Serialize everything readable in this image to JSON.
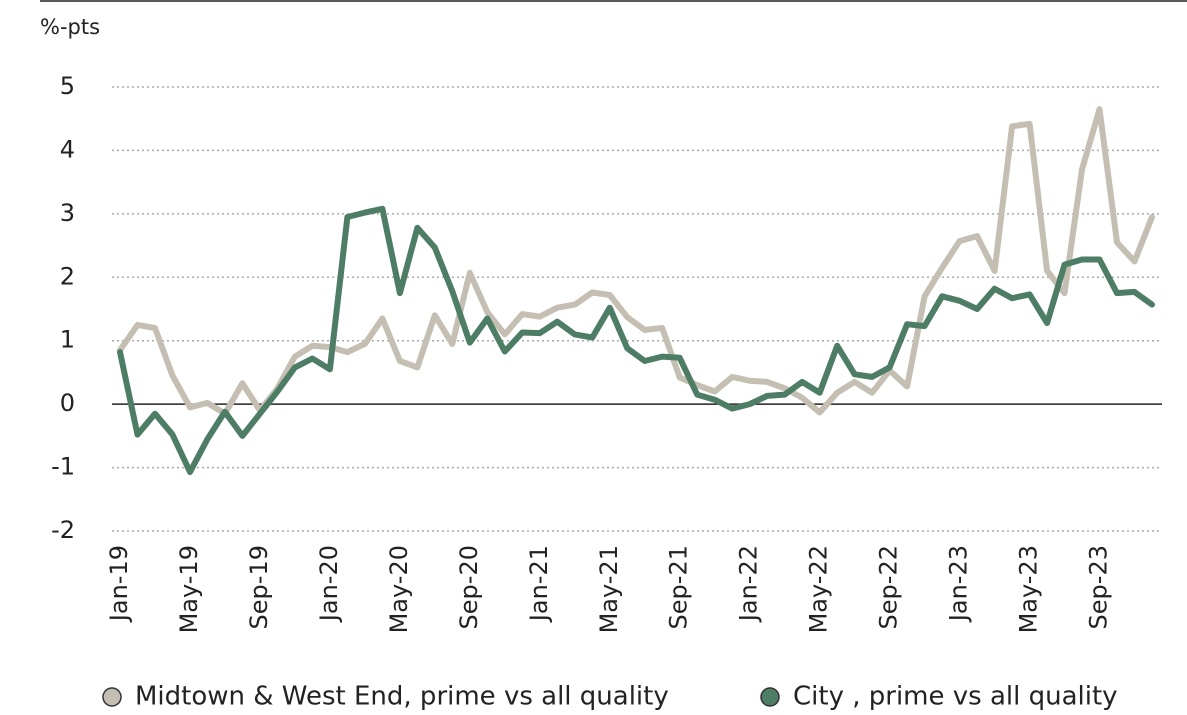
{
  "chart_data": {
    "type": "line",
    "y_axis_label": "%-pts",
    "categories": [
      "Jan-19",
      null,
      null,
      null,
      "May-19",
      null,
      null,
      null,
      "Sep-19",
      null,
      null,
      null,
      "Jan-20",
      null,
      null,
      null,
      "May-20",
      null,
      null,
      null,
      "Sep-20",
      null,
      null,
      null,
      "Jan-21",
      null,
      null,
      null,
      "May-21",
      null,
      null,
      null,
      "Sep-21",
      null,
      null,
      null,
      "Jan-22",
      null,
      null,
      null,
      "May-22",
      null,
      null,
      null,
      "Sep-22",
      null,
      null,
      null,
      "Jan-23",
      null,
      null,
      null,
      "May-23",
      null,
      null,
      null,
      "Sep-23",
      null,
      null,
      null
    ],
    "series": [
      {
        "name": "Midtown & West End, prime vs all quality",
        "color": "#c4bfb2",
        "values": [
          0.85,
          1.25,
          1.2,
          0.45,
          -0.05,
          0.02,
          -0.15,
          0.33,
          -0.1,
          0.25,
          0.75,
          0.92,
          0.9,
          0.82,
          0.95,
          1.35,
          0.68,
          0.58,
          1.4,
          0.95,
          2.07,
          1.45,
          1.1,
          1.42,
          1.38,
          1.52,
          1.57,
          1.76,
          1.72,
          1.37,
          1.17,
          1.2,
          0.42,
          0.3,
          0.2,
          0.43,
          0.37,
          0.35,
          0.25,
          0.1,
          -0.13,
          0.18,
          0.35,
          0.18,
          0.53,
          0.28,
          1.7,
          2.15,
          2.57,
          2.65,
          2.1,
          4.38,
          4.42,
          2.1,
          1.75,
          3.7,
          4.65,
          2.55,
          2.25,
          2.95
        ]
      },
      {
        "name": "City , prime vs all quality",
        "color": "#4e7d66",
        "values": [
          0.82,
          -0.48,
          -0.15,
          -0.48,
          -1.07,
          -0.55,
          -0.12,
          -0.5,
          -0.15,
          0.2,
          0.58,
          0.72,
          0.55,
          2.95,
          3.02,
          3.08,
          1.75,
          2.78,
          2.47,
          1.78,
          0.97,
          1.35,
          0.83,
          1.13,
          1.12,
          1.3,
          1.1,
          1.05,
          1.52,
          0.88,
          0.68,
          0.75,
          0.73,
          0.15,
          0.07,
          -0.07,
          0.0,
          0.13,
          0.15,
          0.35,
          0.18,
          0.92,
          0.47,
          0.43,
          0.58,
          1.26,
          1.23,
          1.7,
          1.63,
          1.5,
          1.82,
          1.67,
          1.73,
          1.28,
          2.2,
          2.28,
          2.28,
          1.75,
          1.77,
          1.57
        ]
      }
    ],
    "ylim": [
      -2,
      5
    ],
    "yticks": [
      -2,
      -1,
      0,
      1,
      2,
      3,
      4,
      5
    ],
    "grid": true,
    "legend": "bottom"
  }
}
